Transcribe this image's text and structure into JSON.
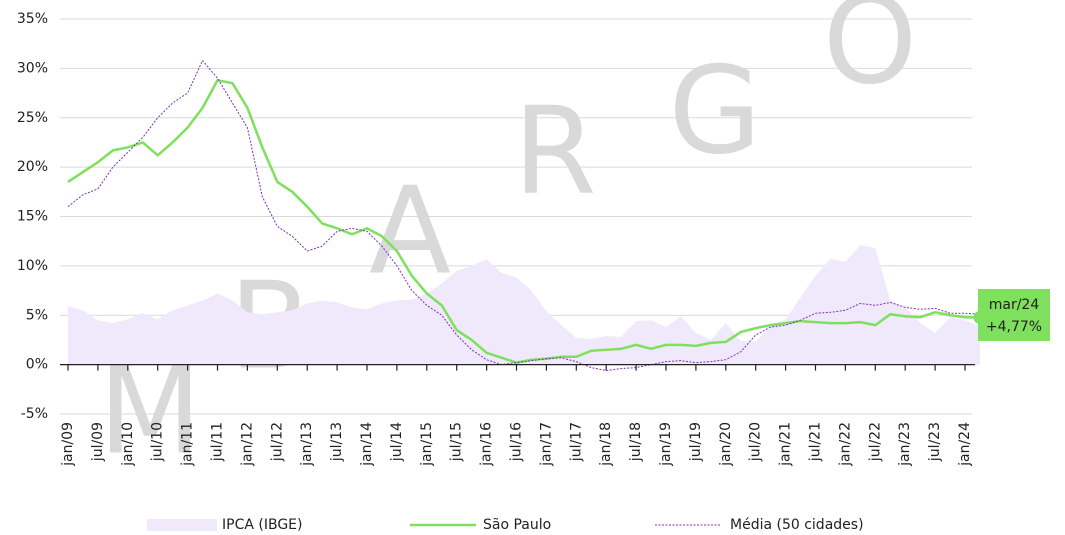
{
  "chart_data": {
    "type": "line",
    "watermark": [
      "M",
      "B",
      "A",
      "R",
      "G",
      "O"
    ],
    "categories": [
      "jan/09",
      null,
      "jul/09",
      null,
      "jan/10",
      null,
      "jul/10",
      null,
      "jan/11",
      null,
      "jul/11",
      null,
      "jan/12",
      null,
      "jul/12",
      null,
      "jan/13",
      null,
      "jul/13",
      null,
      "jan/14",
      null,
      "jul/14",
      null,
      "jan/15",
      null,
      "jul/15",
      null,
      "jan/16",
      null,
      "jul/16",
      null,
      "jan/17",
      null,
      "jul/17",
      null,
      "jan/18",
      null,
      "jul/18",
      null,
      "jan/19",
      null,
      "jul/19",
      null,
      "jan/20",
      null,
      "jul/20",
      null,
      "jan/21",
      null,
      "jul/21",
      null,
      "jan/22",
      null,
      "jul/22",
      null,
      "jan/23",
      null,
      "jul/23",
      null,
      "jan/24",
      null
    ],
    "series": [
      {
        "name": "IPCA (IBGE)",
        "color": "#efe9fb",
        "style": "area",
        "values": [
          5.9,
          5.5,
          4.5,
          4.2,
          4.6,
          5.2,
          4.6,
          5.5,
          6,
          6.5,
          7.2,
          6.5,
          5.3,
          5.1,
          5.3,
          5.5,
          6.2,
          6.5,
          6.3,
          5.8,
          5.6,
          6.2,
          6.5,
          6.6,
          7.2,
          8.2,
          9.5,
          10,
          10.7,
          9.3,
          8.8,
          7.5,
          5.4,
          4,
          2.7,
          2.6,
          2.9,
          2.8,
          4.4,
          4.5,
          3.8,
          4.9,
          3.2,
          2.5,
          4.2,
          2.4,
          2.3,
          3.9,
          4.6,
          6.8,
          9.0,
          10.7,
          10.4,
          12.1,
          11.8,
          6.5,
          5.8,
          4.2,
          3.2,
          4.8,
          4.5,
          3.9
        ]
      },
      {
        "name": "São Paulo",
        "color": "#7ee05c",
        "style": "solid",
        "values": [
          18.5,
          19.5,
          20.5,
          21.7,
          22,
          22.5,
          21.2,
          22.5,
          24,
          26,
          28.8,
          28.5,
          26,
          22,
          18.5,
          17.5,
          16,
          14.3,
          13.8,
          13.2,
          13.8,
          13,
          11.5,
          9,
          7.2,
          6,
          3.5,
          2.5,
          1.2,
          0.7,
          0.2,
          0.5,
          0.6,
          0.8,
          0.8,
          1.4,
          1.5,
          1.6,
          2.0,
          1.6,
          2.0,
          2.0,
          1.9,
          2.2,
          2.3,
          3.3,
          3.7,
          4.0,
          4.2,
          4.4,
          4.3,
          4.2,
          4.2,
          4.3,
          4.0,
          5.1,
          4.9,
          4.8,
          5.3,
          5.0,
          4.8,
          4.77
        ]
      },
      {
        "name": "Média (50 cidades)",
        "color": "#7b2fbf",
        "style": "dotted",
        "values": [
          16,
          17.2,
          17.8,
          20,
          21.5,
          23,
          25,
          26.5,
          27.5,
          30.8,
          29,
          26.5,
          24,
          17,
          14,
          13,
          11.5,
          12,
          13.5,
          13.8,
          13.5,
          12,
          10,
          7.5,
          6,
          5,
          3,
          1.5,
          0.5,
          0,
          0.2,
          0.4,
          0.6,
          0.7,
          0.3,
          -0.3,
          -0.6,
          -0.4,
          -0.3,
          0,
          0.3,
          0.4,
          0.2,
          0.3,
          0.5,
          1.3,
          3,
          3.8,
          4,
          4.5,
          5.2,
          5.3,
          5.5,
          6.2,
          6,
          6.3,
          5.8,
          5.6,
          5.7,
          5.2,
          5.2,
          5.1
        ]
      }
    ],
    "annotation": [
      "mar/24",
      "+4,77%"
    ],
    "ylim": [
      -5,
      35
    ],
    "yticks": [
      {
        "value": -5,
        "label": "-5%"
      },
      {
        "value": 0,
        "label": "0%"
      },
      {
        "value": 5,
        "label": "5%"
      },
      {
        "value": 10,
        "label": "10%"
      },
      {
        "value": 15,
        "label": "15%"
      },
      {
        "value": 20,
        "label": "20%"
      },
      {
        "value": 25,
        "label": "25%"
      },
      {
        "value": 30,
        "label": "30%"
      },
      {
        "value": 35,
        "label": "35%"
      }
    ],
    "grid": true
  }
}
